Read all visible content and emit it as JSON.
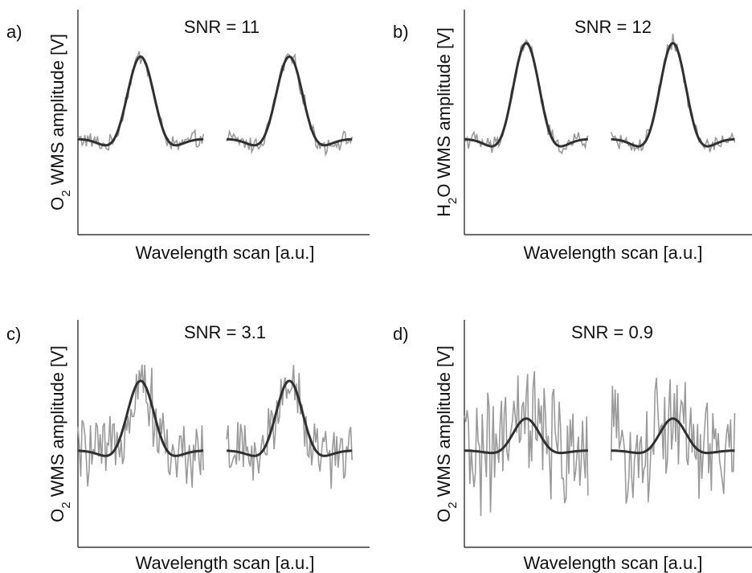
{
  "chart_data": [
    {
      "type": "line",
      "panel_label": "a)",
      "title": "SNR = 11",
      "xlabel": "Wavelength scan [a.u.]",
      "ylabel_main": "O",
      "ylabel_sub": "2",
      "ylabel_rest": " WMS amplitude [V]",
      "ylim": [
        -1.0,
        1.35
      ],
      "segments": 2,
      "fit_amplitude": 0.86,
      "noise_level": 0.07,
      "series": [
        {
          "name": "measured",
          "color": "#9a9a9a"
        },
        {
          "name": "fit",
          "color": "#303030"
        }
      ]
    },
    {
      "type": "line",
      "panel_label": "b)",
      "title": "SNR = 12",
      "xlabel": "Wavelength scan [a.u.]",
      "ylabel_main": "H",
      "ylabel_sub": "2",
      "ylabel_rest": "O WMS amplitude [V]",
      "ylim": [
        -1.0,
        1.35
      ],
      "segments": 2,
      "fit_amplitude": 1.0,
      "noise_level": 0.07,
      "series": [
        {
          "name": "measured",
          "color": "#9a9a9a"
        },
        {
          "name": "fit",
          "color": "#303030"
        }
      ]
    },
    {
      "type": "line",
      "panel_label": "c)",
      "title": "SNR = 3.1",
      "xlabel": "Wavelength scan [a.u.]",
      "ylabel_main": "O",
      "ylabel_sub": "2",
      "ylabel_rest": " WMS amplitude [V]",
      "ylim": [
        -1.0,
        1.35
      ],
      "segments": 2,
      "fit_amplitude": 0.72,
      "noise_level": 0.28,
      "series": [
        {
          "name": "measured",
          "color": "#9a9a9a"
        },
        {
          "name": "fit",
          "color": "#303030"
        }
      ]
    },
    {
      "type": "line",
      "panel_label": "d)",
      "title": "SNR = 0.9",
      "xlabel": "Wavelength scan [a.u.]",
      "ylabel_main": "O",
      "ylabel_sub": "2",
      "ylabel_rest": " WMS amplitude [V]",
      "ylim": [
        -1.0,
        1.35
      ],
      "segments": 2,
      "fit_amplitude": 0.33,
      "noise_level": 0.48,
      "series": [
        {
          "name": "measured",
          "color": "#9a9a9a"
        },
        {
          "name": "fit",
          "color": "#303030"
        }
      ]
    }
  ]
}
